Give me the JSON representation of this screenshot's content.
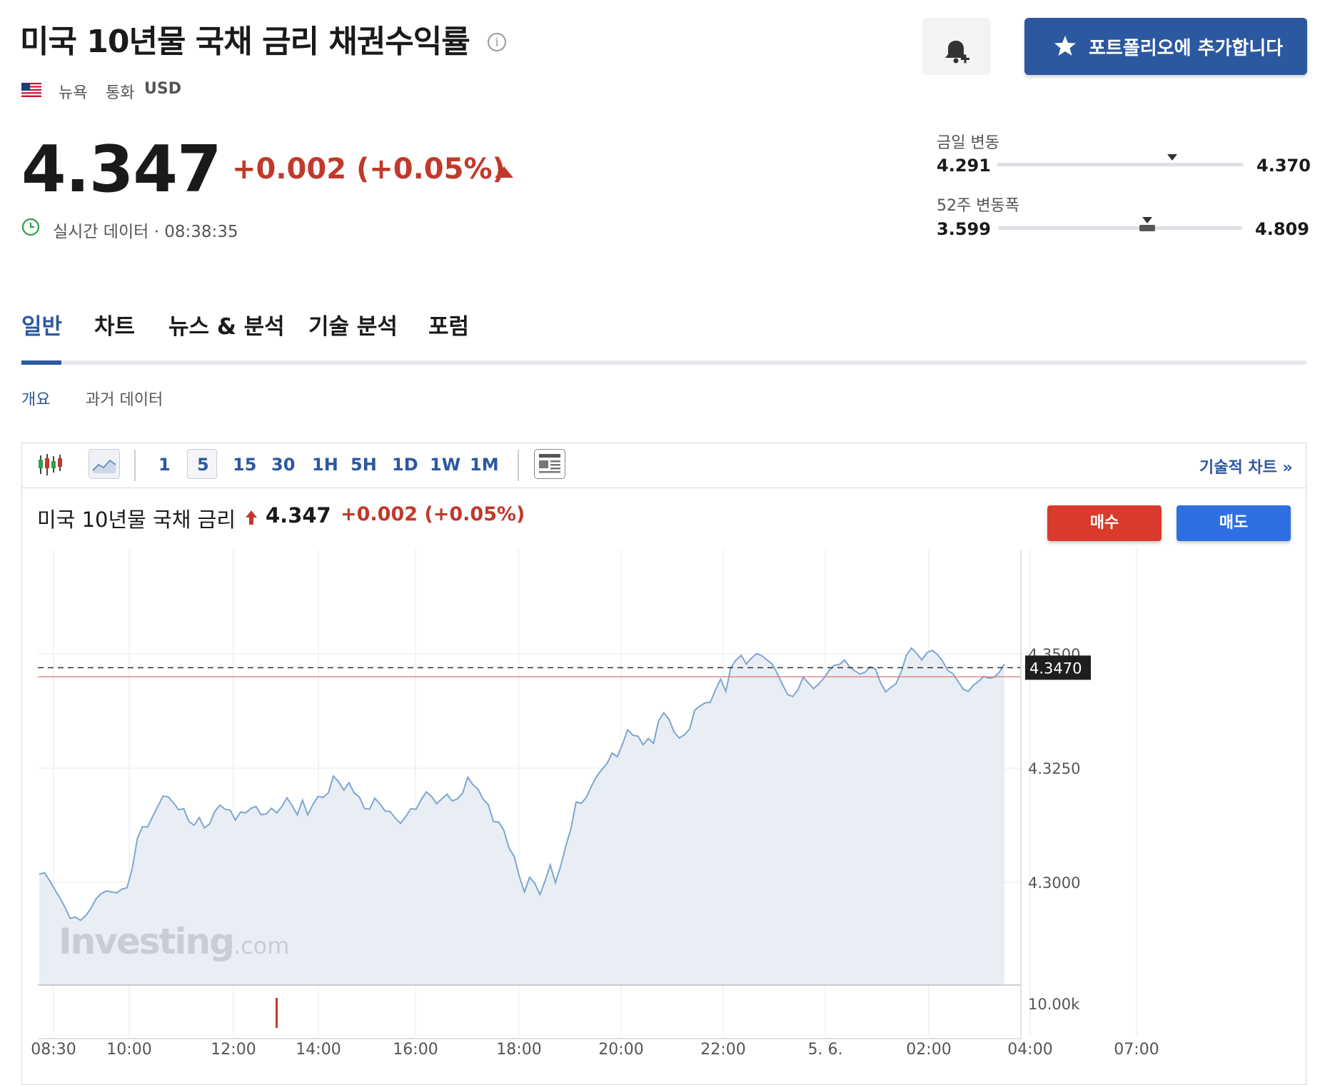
{
  "header": {
    "title": "미국 10년물 국채 금리 채권수익률",
    "exchange": "뉴욕",
    "currency_label": "통화",
    "currency": "USD",
    "portfolio_button": "포트폴리오에 추가합니다"
  },
  "quote": {
    "price": "4.347",
    "change": "+0.002 (+0.05%)",
    "realtime": "실시간 데이터 · 08:38:35"
  },
  "ranges": {
    "day_label": "금일 변동",
    "day_low": "4.291",
    "day_high": "4.370",
    "day_position": 0.71,
    "week52_label": "52주 변동폭",
    "week52_low": "3.599",
    "week52_high": "4.809",
    "week52_position": 0.61
  },
  "tabs": [
    "일반",
    "차트",
    "뉴스 & 분석",
    "기술 분석",
    "포럼"
  ],
  "active_tab": "일반",
  "subtabs": [
    "개요",
    "과거 데이터"
  ],
  "toolbar": {
    "intervals": [
      "1",
      "5",
      "15",
      "30",
      "1H",
      "5H",
      "1D",
      "1W",
      "1M"
    ],
    "selected_interval": "5",
    "tech_chart_link": "기술적 차트 »"
  },
  "chart_header": {
    "title": "미국 10년물 국채 금리",
    "price": "4.347",
    "change": "+0.002 (+0.05%)",
    "buy": "매수",
    "sell": "매도"
  },
  "watermark": {
    "brand": "Investing",
    "domain": ".com"
  },
  "colors": {
    "accent": "#2c58a0",
    "negative_red": "#c0392b",
    "buy": "#d93a2b",
    "sell": "#2f6fe4",
    "line": "#7ea6cf",
    "area": "#e9eef5"
  },
  "chart_data": {
    "type": "area",
    "ytick_labels": [
      "4.3500",
      "4.3250",
      "4.3000"
    ],
    "yticks": [
      4.35,
      4.325,
      4.3
    ],
    "ylim": [
      4.2775,
      4.3705
    ],
    "current_label": "4.3470",
    "current_value": 4.347,
    "previous_close": 4.345,
    "volume_label": "10.00k",
    "xtick_labels": [
      "08:30",
      "10:00",
      "12:00",
      "14:00",
      "16:00",
      "18:00",
      "20:00",
      "22:00",
      "5. 6.",
      "02:00",
      "04:00",
      "07:00"
    ],
    "grid": true,
    "series": [
      {
        "values": [
          4.3018,
          4.3021,
          4.3004,
          4.2984,
          4.2966,
          4.2945,
          4.2921,
          4.2924,
          4.2917,
          4.2927,
          4.2943,
          4.2964,
          4.2975,
          4.2981,
          4.2979,
          4.2977,
          4.2985,
          4.2988,
          4.3029,
          4.3096,
          4.3122,
          4.3121,
          4.3145,
          4.3167,
          4.3189,
          4.3187,
          4.3174,
          4.3159,
          4.3161,
          4.3133,
          4.3125,
          4.3142,
          4.3119,
          4.3128,
          4.3155,
          4.3169,
          4.316,
          4.3158,
          4.3136,
          4.3154,
          4.3152,
          4.3162,
          4.3166,
          4.3148,
          4.315,
          4.3162,
          4.3152,
          4.3166,
          4.3185,
          4.3168,
          4.3148,
          4.318,
          4.3148,
          4.317,
          4.3188,
          4.3186,
          4.3196,
          4.3233,
          4.322,
          4.3202,
          4.3218,
          4.3196,
          4.3187,
          4.3162,
          4.316,
          4.3184,
          4.3172,
          4.3156,
          4.3155,
          4.314,
          4.3129,
          4.3144,
          4.3161,
          4.316,
          4.3181,
          4.3198,
          4.3188,
          4.3172,
          4.3183,
          4.3193,
          4.3178,
          4.3183,
          4.3195,
          4.323,
          4.3214,
          4.3204,
          4.3182,
          4.317,
          4.3133,
          4.3132,
          4.3114,
          4.3075,
          4.3057,
          4.3013,
          4.2979,
          4.3011,
          4.2998,
          4.2973,
          4.3003,
          4.3038,
          4.2999,
          4.3035,
          4.3079,
          4.3117,
          4.3176,
          4.3173,
          4.3186,
          4.3211,
          4.3232,
          4.3247,
          4.326,
          4.3283,
          4.3275,
          4.3303,
          4.3334,
          4.3322,
          4.332,
          4.3301,
          4.3315,
          4.3304,
          4.3354,
          4.3371,
          4.3357,
          4.3329,
          4.3316,
          4.3323,
          4.3336,
          4.3377,
          4.3386,
          4.3393,
          4.3394,
          4.3421,
          4.3445,
          4.3418,
          4.347,
          4.3487,
          4.3497,
          4.3478,
          4.3491,
          4.3501,
          4.3496,
          4.3487,
          4.3478,
          4.3457,
          4.3433,
          4.3411,
          4.3407,
          4.3422,
          4.3449,
          4.3437,
          4.3424,
          4.3434,
          4.3447,
          4.3463,
          4.3475,
          4.3477,
          4.3487,
          4.3472,
          4.3463,
          4.3456,
          4.346,
          4.3472,
          4.3467,
          4.3437,
          4.3417,
          4.3427,
          4.3435,
          4.3461,
          4.3497,
          4.3513,
          4.3501,
          4.3487,
          4.3503,
          4.3508,
          4.3499,
          4.3485,
          4.3464,
          4.3457,
          4.344,
          4.3423,
          4.3418,
          4.3432,
          4.344,
          4.3451,
          4.3447,
          4.3449,
          4.346,
          4.3478
        ]
      }
    ]
  }
}
